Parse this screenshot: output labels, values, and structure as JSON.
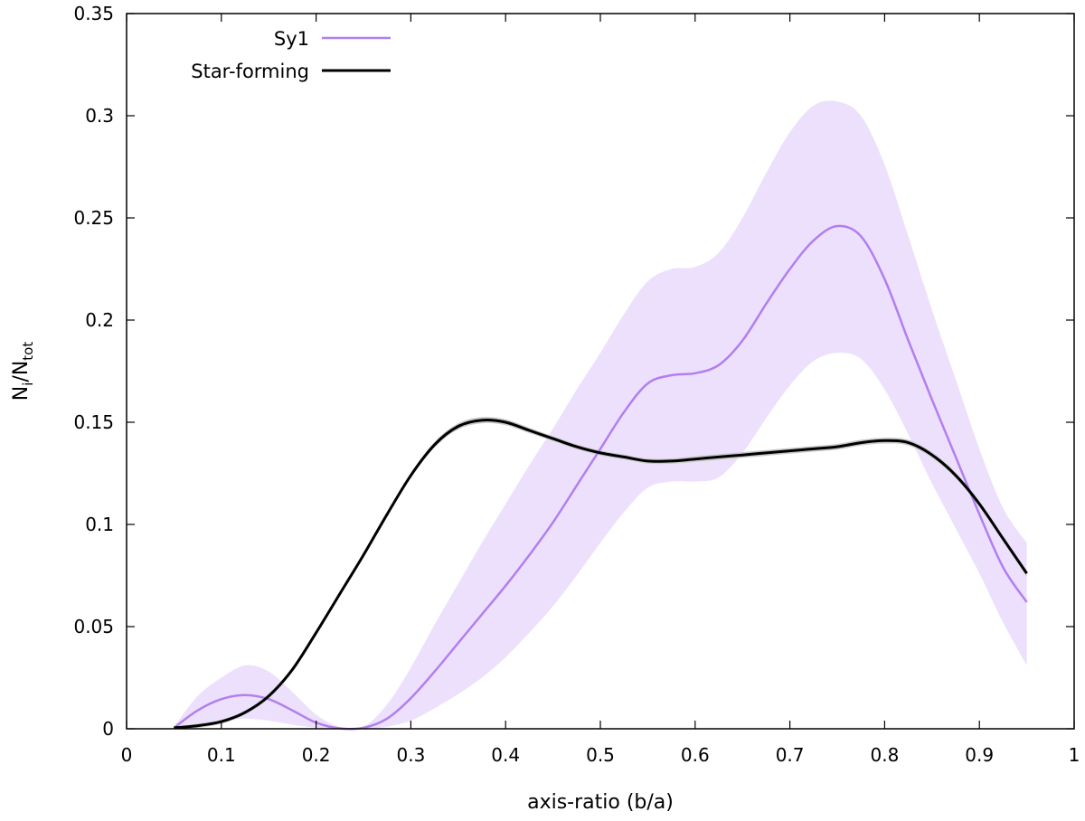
{
  "chart_data": {
    "type": "line",
    "title": "",
    "xlabel": "axis-ratio (b/a)",
    "ylabel": {
      "main": "N",
      "sub1": "i",
      "slash": "/N",
      "sub2": "tot"
    },
    "xlim": [
      0,
      1
    ],
    "ylim": [
      0,
      0.35
    ],
    "xticks": [
      0,
      0.1,
      0.2,
      0.3,
      0.4,
      0.5,
      0.6,
      0.7,
      0.8,
      0.9,
      1
    ],
    "xtick_labels": [
      "0",
      "0.1",
      "0.2",
      "0.3",
      "0.4",
      "0.5",
      "0.6",
      "0.7",
      "0.8",
      "0.9",
      "1"
    ],
    "yticks": [
      0,
      0.05,
      0.1,
      0.15,
      0.2,
      0.25,
      0.3,
      0.35
    ],
    "ytick_labels": [
      "0",
      "0.05",
      "0.1",
      "0.15",
      "0.2",
      "0.25",
      "0.3",
      "0.35"
    ],
    "grid": false,
    "legend_position": "top-left",
    "x": [
      0.05,
      0.075,
      0.1,
      0.125,
      0.15,
      0.175,
      0.2,
      0.225,
      0.25,
      0.275,
      0.3,
      0.325,
      0.35,
      0.375,
      0.4,
      0.425,
      0.45,
      0.475,
      0.5,
      0.525,
      0.55,
      0.575,
      0.6,
      0.625,
      0.65,
      0.675,
      0.7,
      0.725,
      0.75,
      0.775,
      0.8,
      0.825,
      0.85,
      0.875,
      0.9,
      0.925,
      0.95
    ],
    "series": [
      {
        "name": "Sy1",
        "color": "#b17ff0",
        "band_color": "#ede0fc",
        "values": [
          0.0005,
          0.009,
          0.0145,
          0.0165,
          0.0145,
          0.009,
          0.003,
          0.0002,
          0.0005,
          0.005,
          0.015,
          0.028,
          0.042,
          0.056,
          0.07,
          0.085,
          0.101,
          0.119,
          0.137,
          0.155,
          0.169,
          0.173,
          0.174,
          0.178,
          0.19,
          0.208,
          0.225,
          0.239,
          0.246,
          0.241,
          0.22,
          0.19,
          0.161,
          0.133,
          0.105,
          0.079,
          0.062
        ],
        "lower": [
          0.0,
          0.002,
          0.004,
          0.005,
          0.004,
          0.002,
          0.0005,
          0.0,
          0.0,
          0.001,
          0.004,
          0.01,
          0.017,
          0.025,
          0.035,
          0.047,
          0.06,
          0.075,
          0.091,
          0.106,
          0.118,
          0.121,
          0.121,
          0.123,
          0.135,
          0.152,
          0.168,
          0.18,
          0.184,
          0.181,
          0.166,
          0.144,
          0.12,
          0.098,
          0.076,
          0.052,
          0.031
        ],
        "upper": [
          0.001,
          0.016,
          0.025,
          0.031,
          0.028,
          0.018,
          0.007,
          0.001,
          0.001,
          0.012,
          0.03,
          0.051,
          0.071,
          0.091,
          0.11,
          0.129,
          0.147,
          0.166,
          0.184,
          0.203,
          0.219,
          0.225,
          0.226,
          0.233,
          0.25,
          0.272,
          0.292,
          0.305,
          0.307,
          0.3,
          0.276,
          0.241,
          0.205,
          0.171,
          0.137,
          0.108,
          0.091
        ]
      },
      {
        "name": "Star-forming",
        "color": "#000000",
        "band_color": "#c8c8c8",
        "values": [
          0.0005,
          0.0015,
          0.0035,
          0.008,
          0.016,
          0.029,
          0.047,
          0.066,
          0.085,
          0.105,
          0.124,
          0.139,
          0.148,
          0.151,
          0.15,
          0.146,
          0.142,
          0.138,
          0.135,
          0.133,
          0.131,
          0.131,
          0.132,
          0.133,
          0.134,
          0.135,
          0.136,
          0.137,
          0.138,
          0.14,
          0.141,
          0.14,
          0.134,
          0.124,
          0.11,
          0.093,
          0.076
        ],
        "lower": [
          0.0,
          0.0005,
          0.0025,
          0.007,
          0.0148,
          0.0278,
          0.0458,
          0.0648,
          0.0838,
          0.1038,
          0.1228,
          0.1376,
          0.1465,
          0.1495,
          0.1486,
          0.1447,
          0.1408,
          0.1368,
          0.1338,
          0.1318,
          0.1298,
          0.1297,
          0.1306,
          0.1316,
          0.1326,
          0.1336,
          0.1346,
          0.1356,
          0.1366,
          0.1386,
          0.1396,
          0.1386,
          0.1326,
          0.1226,
          0.1086,
          0.0916,
          0.0744
        ],
        "upper": [
          0.001,
          0.0025,
          0.0045,
          0.009,
          0.0172,
          0.0302,
          0.0482,
          0.0672,
          0.0862,
          0.1062,
          0.1252,
          0.1404,
          0.1495,
          0.1525,
          0.1514,
          0.1473,
          0.1432,
          0.1392,
          0.1362,
          0.1342,
          0.1322,
          0.1323,
          0.1334,
          0.1344,
          0.1354,
          0.1364,
          0.1374,
          0.1384,
          0.1394,
          0.1414,
          0.1424,
          0.1414,
          0.1354,
          0.1254,
          0.1114,
          0.0944,
          0.0776
        ]
      }
    ]
  }
}
